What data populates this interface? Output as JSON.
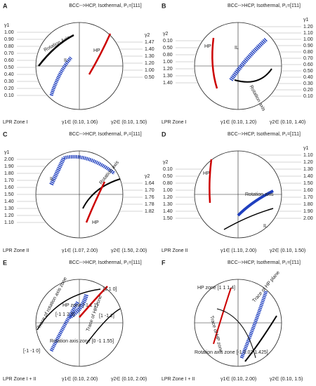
{
  "panels": [
    {
      "label": "A",
      "title": "BCC-->HCP, Isothermal, P₁=[111]",
      "left_scale": {
        "name": "γ1",
        "values": [
          "1.00",
          "0.90",
          "0.80",
          "0.70",
          "0.60",
          "0.50",
          "0.40",
          "0.30",
          "0.20",
          "0.10"
        ]
      },
      "right_scale": {
        "name": "γ2",
        "values": [
          "1.47",
          "1.40",
          "1.30",
          "1.20",
          "1.00",
          "0.50"
        ]
      },
      "annotations": [
        "Rotation Axis",
        "IL",
        "HP"
      ],
      "zone": "LPR Zone I",
      "gamma1_range": "γ1∈ (0.10, 1.06)",
      "gamma2_range": "γ2∈ (0.10, 1.50)"
    },
    {
      "label": "B",
      "title": "BCC-->HCP, Isothermal, P₁=[1̄11]",
      "left_scale": {
        "name": "γ2",
        "values": [
          "0.10",
          "0.50",
          "0.80",
          "1.00",
          "1.20",
          "1.30",
          "1.40"
        ]
      },
      "right_scale": {
        "name": "γ1",
        "values": [
          "1.20",
          "1.10",
          "1.00",
          "0.90",
          "0.80",
          "0.70",
          "0.60",
          "0.50",
          "0.40",
          "0.30",
          "0.20",
          "0.10"
        ]
      },
      "annotations": [
        "HP",
        "IL",
        "Rotation axis"
      ],
      "zone": "LPR Zone I",
      "gamma1_range": "γ1∈ (0.10, 1.20)",
      "gamma2_range": "γ2∈ (0.10, 1.40)"
    },
    {
      "label": "C",
      "title": "BCC-->HCP, Isothermal, P₁=[111]",
      "left_scale": {
        "name": "γ1",
        "values": [
          "2.00",
          "1.90",
          "1.80",
          "1.70",
          "1.60",
          "1.50",
          "1.40",
          "1.30",
          "1.20",
          "1.10"
        ]
      },
      "right_scale": {
        "name": "γ2",
        "values": [
          "1.64",
          "1.70",
          "1.76",
          "1.78",
          "1.82"
        ]
      },
      "annotations": [
        "IL",
        "Rotation axis",
        "HP"
      ],
      "zone": "LPR Zone II",
      "gamma1_range": "γ1∈ (1.07, 2.00)",
      "gamma2_range": "γ2∈ (1.50, 2.00)"
    },
    {
      "label": "D",
      "title": "BCC-->HCP, Isothermal, P₁=[1̄11]",
      "left_scale": {
        "name": "γ2",
        "values": [
          "0.10",
          "0.50",
          "0.80",
          "1.00",
          "1.20",
          "1.30",
          "1.40",
          "1.50"
        ]
      },
      "right_scale": {
        "name": "γ1",
        "values": [
          "1.10",
          "1.20",
          "1.30",
          "1.40",
          "1.50",
          "1.60",
          "1.70",
          "1.80",
          "1.90",
          "2.00"
        ]
      },
      "annotations": [
        "HP",
        "Rotation axis",
        "IL"
      ],
      "zone": "LPR Zone II",
      "gamma1_range": "γ1∈ (1.10, 2.00)",
      "gamma2_range": "γ2∈ (0.10, 1.50)"
    },
    {
      "label": "E",
      "title": "BCC-->HCP, Isothermal, P₁=[111]",
      "annotations": [
        "[1 1 0]",
        "HP zone [-1 1 1]",
        "[-1 1 2.5]",
        "Trace of rotation axis zone",
        "[1 -1 2]",
        "Trace of HP zone",
        "Rotation axis zone [0 -1 1.55]",
        "[-1 -1 0]"
      ],
      "zone": "LPR Zone I + II",
      "gamma1_range": "γ1∈ (0.10, 2.00)",
      "gamma2_range": "γ2∈ (0.10, 2.00)"
    },
    {
      "label": "F",
      "title": "BCC-->HCP, Isothermal, P₁=[1̄11]",
      "annotations": [
        "HP zone [1 1 1.4]",
        "Trace of HP plane",
        "Trace of HP zone",
        "Rotation axis zone [-1 0.02 1.425]"
      ],
      "zone": "LPR Zone I + II",
      "gamma1_range": "γ1∈ (0.10, 2.00)",
      "gamma2_range": "γ2∈ (0.10, 1.5)"
    }
  ]
}
